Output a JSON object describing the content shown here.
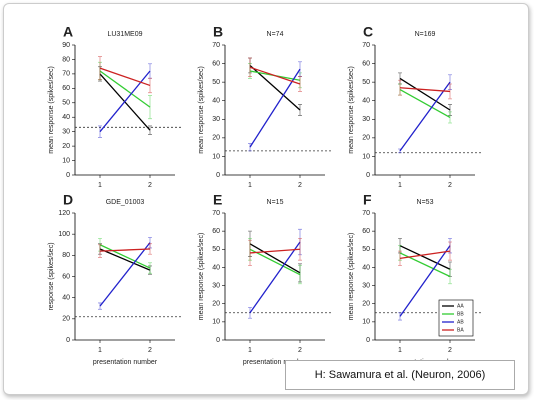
{
  "chart_data": [
    {
      "type": "line",
      "panel": "A",
      "title": "LU31ME09",
      "ylabel": "mean response (spikes/sec)",
      "x": [
        1,
        2
      ],
      "xlim": [
        0.5,
        2.5
      ],
      "xticks": [
        1,
        2
      ],
      "ylim": [
        0,
        90
      ],
      "yticks": [
        0,
        10,
        20,
        30,
        40,
        50,
        60,
        70,
        80,
        90
      ],
      "baseline": 33,
      "series": [
        {
          "color": "#000000",
          "values": [
            70,
            31
          ],
          "errors": [
            5,
            3
          ]
        },
        {
          "color": "#33cc33",
          "values": [
            72,
            47
          ],
          "errors": [
            6,
            8
          ]
        },
        {
          "color": "#2222cc",
          "values": [
            30,
            72
          ],
          "errors": [
            4,
            5
          ]
        },
        {
          "color": "#cc2222",
          "values": [
            74,
            62
          ],
          "errors": [
            8,
            5
          ]
        }
      ]
    },
    {
      "type": "line",
      "panel": "B",
      "title": "N=74",
      "ylabel": "mean response (spikes/sec)",
      "x": [
        1,
        2
      ],
      "xlim": [
        0.5,
        2.5
      ],
      "xticks": [
        1,
        2
      ],
      "ylim": [
        0,
        70
      ],
      "yticks": [
        0,
        10,
        20,
        30,
        40,
        50,
        60,
        70
      ],
      "baseline": 13,
      "series": [
        {
          "color": "#000000",
          "values": [
            59,
            35
          ],
          "errors": [
            4,
            3
          ]
        },
        {
          "color": "#33cc33",
          "values": [
            56,
            51
          ],
          "errors": [
            4,
            4
          ]
        },
        {
          "color": "#2222cc",
          "values": [
            15,
            57
          ],
          "errors": [
            2,
            4
          ]
        },
        {
          "color": "#cc2222",
          "values": [
            58,
            49
          ],
          "errors": [
            5,
            4
          ]
        }
      ]
    },
    {
      "type": "line",
      "panel": "C",
      "title": "N=169",
      "ylabel": "mean response (spikes/sec)",
      "x": [
        1,
        2
      ],
      "xlim": [
        0.5,
        2.5
      ],
      "xticks": [
        1,
        2
      ],
      "ylim": [
        0,
        70
      ],
      "yticks": [
        0,
        10,
        20,
        30,
        40,
        50,
        60,
        70
      ],
      "baseline": 12,
      "series": [
        {
          "color": "#000000",
          "values": [
            52,
            35
          ],
          "errors": [
            3,
            3
          ]
        },
        {
          "color": "#33cc33",
          "values": [
            46,
            31
          ],
          "errors": [
            3,
            3
          ]
        },
        {
          "color": "#2222cc",
          "values": [
            13,
            50
          ],
          "errors": [
            1,
            4
          ]
        },
        {
          "color": "#cc2222",
          "values": [
            47,
            45
          ],
          "errors": [
            4,
            4
          ]
        }
      ]
    },
    {
      "type": "line",
      "panel": "D",
      "title": "GDE_01003",
      "ylabel": "response (spikes/sec)",
      "xlabel": "presentation number",
      "x": [
        1,
        2
      ],
      "xlim": [
        0.5,
        2.5
      ],
      "xticks": [
        1,
        2
      ],
      "ylim": [
        0,
        120
      ],
      "yticks": [
        0,
        20,
        40,
        60,
        80,
        100,
        120
      ],
      "baseline": 22,
      "series": [
        {
          "color": "#000000",
          "values": [
            86,
            66
          ],
          "errors": [
            5,
            4
          ]
        },
        {
          "color": "#33cc33",
          "values": [
            90,
            68
          ],
          "errors": [
            6,
            5
          ]
        },
        {
          "color": "#2222cc",
          "values": [
            32,
            92
          ],
          "errors": [
            3,
            5
          ]
        },
        {
          "color": "#cc2222",
          "values": [
            84,
            86
          ],
          "errors": [
            6,
            5
          ]
        }
      ]
    },
    {
      "type": "line",
      "panel": "E",
      "title": "N=15",
      "ylabel": "mean response (spikes/sec)",
      "xlabel": "presentation number",
      "x": [
        1,
        2
      ],
      "xlim": [
        0.5,
        2.5
      ],
      "xticks": [
        1,
        2
      ],
      "ylim": [
        0,
        70
      ],
      "yticks": [
        0,
        10,
        20,
        30,
        40,
        50,
        60,
        70
      ],
      "baseline": 15,
      "series": [
        {
          "color": "#000000",
          "values": [
            53,
            37
          ],
          "errors": [
            7,
            5
          ]
        },
        {
          "color": "#33cc33",
          "values": [
            50,
            36
          ],
          "errors": [
            6,
            5
          ]
        },
        {
          "color": "#2222cc",
          "values": [
            15,
            54
          ],
          "errors": [
            3,
            7
          ]
        },
        {
          "color": "#cc2222",
          "values": [
            48,
            50
          ],
          "errors": [
            7,
            6
          ]
        }
      ]
    },
    {
      "type": "line",
      "panel": "F",
      "title": "N=53",
      "ylabel": "mean response (spikes/sec)",
      "xlabel": "presentation number",
      "x": [
        1,
        2
      ],
      "xlim": [
        0.5,
        2.5
      ],
      "xticks": [
        1,
        2
      ],
      "ylim": [
        0,
        70
      ],
      "yticks": [
        0,
        10,
        20,
        30,
        40,
        50,
        60,
        70
      ],
      "baseline": 15,
      "legend": "lower right",
      "series": [
        {
          "name": "AA",
          "color": "#000000",
          "values": [
            52,
            39
          ],
          "errors": [
            4,
            4
          ]
        },
        {
          "name": "BB",
          "color": "#33cc33",
          "values": [
            48,
            35
          ],
          "errors": [
            4,
            4
          ]
        },
        {
          "name": "AB",
          "color": "#2222cc",
          "values": [
            13,
            52
          ],
          "errors": [
            2,
            4
          ]
        },
        {
          "name": "BA",
          "color": "#cc2222",
          "values": [
            45,
            49
          ],
          "errors": [
            4,
            5
          ]
        }
      ]
    }
  ],
  "caption": "H: Sawamura et al. (Neuron, 2006)"
}
